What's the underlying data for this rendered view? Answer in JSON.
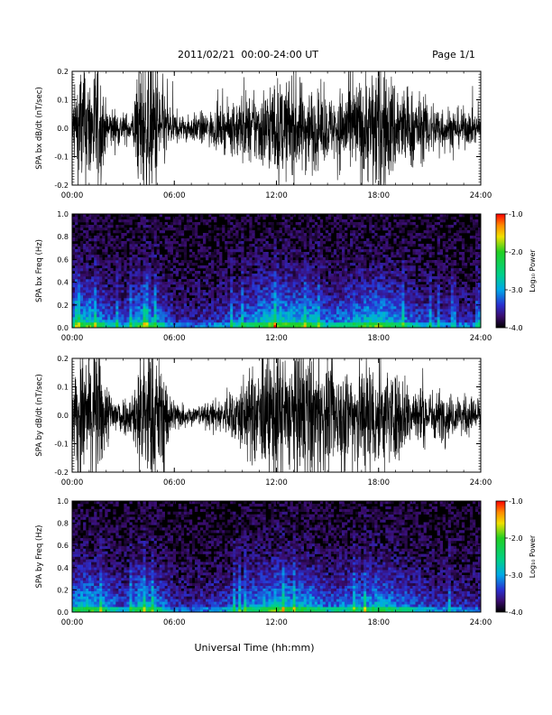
{
  "header": {
    "title": "2011/02/21  00:00-24:00 UT",
    "page": "Page 1/1"
  },
  "footer": {
    "xlabel": "Universal Time (hh:mm)"
  },
  "colors": {
    "axis": "#000000",
    "background": "#ffffff",
    "waveform": "#000000"
  },
  "colorbar": {
    "label": "Log₁₀ Power",
    "ticks": [
      "-1.0",
      "-2.0",
      "-3.0",
      "-4.0"
    ],
    "range": [
      -4.0,
      -1.0
    ],
    "stops": [
      {
        "v": -4.0,
        "c": "#000000"
      },
      {
        "v": -3.7,
        "c": "#3a0d6e"
      },
      {
        "v": -3.4,
        "c": "#2a2fd0"
      },
      {
        "v": -3.0,
        "c": "#00a8e8"
      },
      {
        "v": -2.6,
        "c": "#00d08a"
      },
      {
        "v": -2.0,
        "c": "#22d022"
      },
      {
        "v": -1.6,
        "c": "#f0e000"
      },
      {
        "v": -1.3,
        "c": "#ff8a00"
      },
      {
        "v": -1.0,
        "c": "#ff0000"
      }
    ]
  },
  "chart_data": [
    {
      "type": "line",
      "ylabel": "SPA bx dB/dt (nT/sec)",
      "xlim": [
        0,
        24
      ],
      "ylim": [
        -0.2,
        0.2
      ],
      "x_ticks": [
        "00:00",
        "06:00",
        "12:00",
        "18:00",
        "24:00"
      ],
      "y_ticks": [
        "0.2",
        "0.1",
        "0.0",
        "-0.1",
        "-0.2"
      ],
      "envelope_hours": [
        0,
        0.5,
        1,
        1.5,
        2,
        2.5,
        3,
        3.5,
        4,
        4.5,
        5,
        5.5,
        6,
        6.5,
        7,
        7.5,
        8,
        8.5,
        9,
        9.5,
        10,
        10.5,
        11,
        11.5,
        12,
        12.5,
        13,
        13.5,
        14,
        14.5,
        15,
        15.5,
        16,
        16.5,
        17,
        17.5,
        18,
        18.5,
        19,
        19.5,
        20,
        20.5,
        21,
        21.5,
        22,
        22.5,
        23,
        23.5,
        24
      ],
      "envelope_amplitude": [
        0.08,
        0.22,
        0.18,
        0.22,
        0.07,
        0.06,
        0.05,
        0.04,
        0.22,
        0.22,
        0.22,
        0.1,
        0.05,
        0.04,
        0.04,
        0.05,
        0.05,
        0.06,
        0.07,
        0.08,
        0.12,
        0.1,
        0.12,
        0.14,
        0.15,
        0.14,
        0.16,
        0.14,
        0.13,
        0.11,
        0.1,
        0.1,
        0.15,
        0.14,
        0.16,
        0.18,
        0.22,
        0.18,
        0.16,
        0.13,
        0.12,
        0.1,
        0.09,
        0.08,
        0.07,
        0.06,
        0.06,
        0.05,
        0.05
      ]
    },
    {
      "type": "heatmap",
      "ylabel": "SPA bx Freq (Hz)",
      "xlim": [
        0,
        24
      ],
      "ylim": [
        0,
        1.0
      ],
      "x_ticks": [
        "00:00",
        "06:00",
        "12:00",
        "18:00",
        "24:00"
      ],
      "y_ticks": [
        "1.0",
        "0.8",
        "0.6",
        "0.4",
        "0.2",
        "0.0"
      ],
      "z_label": "Log₁₀ Power",
      "z_range": [
        -4.0,
        -1.0
      ],
      "activity_hours": [
        0,
        1,
        2,
        3,
        4,
        5,
        6,
        7,
        8,
        9,
        10,
        11,
        12,
        13,
        14,
        15,
        16,
        17,
        18,
        19,
        20,
        21,
        22,
        23,
        24
      ],
      "activity_level": [
        0.6,
        0.75,
        0.5,
        0.35,
        0.7,
        0.55,
        0.3,
        0.25,
        0.3,
        0.35,
        0.5,
        0.65,
        0.8,
        0.7,
        0.7,
        0.45,
        0.55,
        0.65,
        0.75,
        0.6,
        0.45,
        0.35,
        0.3,
        0.3,
        0.25
      ]
    },
    {
      "type": "line",
      "ylabel": "SPA by dB/dt (nT/sec)",
      "xlim": [
        0,
        24
      ],
      "ylim": [
        -0.2,
        0.2
      ],
      "x_ticks": [
        "00:00",
        "06:00",
        "12:00",
        "18:00",
        "24:00"
      ],
      "y_ticks": [
        "0.2",
        "0.1",
        "0.0",
        "-0.1",
        "-0.2"
      ],
      "envelope_hours": [
        0,
        0.5,
        1,
        1.5,
        2,
        2.5,
        3,
        3.5,
        4,
        4.5,
        5,
        5.5,
        6,
        6.5,
        7,
        7.5,
        8,
        8.5,
        9,
        9.5,
        10,
        10.5,
        11,
        11.5,
        12,
        12.5,
        13,
        13.5,
        14,
        14.5,
        15,
        15.5,
        16,
        16.5,
        17,
        17.5,
        18,
        18.5,
        19,
        19.5,
        20,
        20.5,
        21,
        21.5,
        22,
        22.5,
        23,
        23.5,
        24
      ],
      "envelope_amplitude": [
        0.1,
        0.22,
        0.2,
        0.22,
        0.1,
        0.07,
        0.06,
        0.06,
        0.22,
        0.22,
        0.2,
        0.12,
        0.05,
        0.04,
        0.03,
        0.03,
        0.04,
        0.05,
        0.06,
        0.08,
        0.12,
        0.14,
        0.16,
        0.18,
        0.22,
        0.2,
        0.18,
        0.22,
        0.2,
        0.18,
        0.16,
        0.15,
        0.16,
        0.18,
        0.2,
        0.18,
        0.17,
        0.15,
        0.14,
        0.12,
        0.1,
        0.09,
        0.08,
        0.08,
        0.07,
        0.06,
        0.06,
        0.06,
        0.06
      ]
    },
    {
      "type": "heatmap",
      "ylabel": "SPA by Freq (Hz)",
      "xlim": [
        0,
        24
      ],
      "ylim": [
        0,
        1.0
      ],
      "x_ticks": [
        "00:00",
        "06:00",
        "12:00",
        "18:00",
        "24:00"
      ],
      "y_ticks": [
        "1.0",
        "0.8",
        "0.6",
        "0.4",
        "0.2",
        "0.0"
      ],
      "z_label": "Log₁₀ Power",
      "z_range": [
        -4.0,
        -1.0
      ],
      "activity_hours": [
        0,
        1,
        2,
        3,
        4,
        5,
        6,
        7,
        8,
        9,
        10,
        11,
        12,
        13,
        14,
        15,
        16,
        17,
        18,
        19,
        20,
        21,
        22,
        23,
        24
      ],
      "activity_level": [
        0.6,
        0.7,
        0.55,
        0.35,
        0.7,
        0.55,
        0.3,
        0.25,
        0.3,
        0.35,
        0.5,
        0.6,
        0.75,
        0.65,
        0.65,
        0.45,
        0.5,
        0.6,
        0.65,
        0.55,
        0.45,
        0.35,
        0.3,
        0.3,
        0.25
      ]
    }
  ]
}
